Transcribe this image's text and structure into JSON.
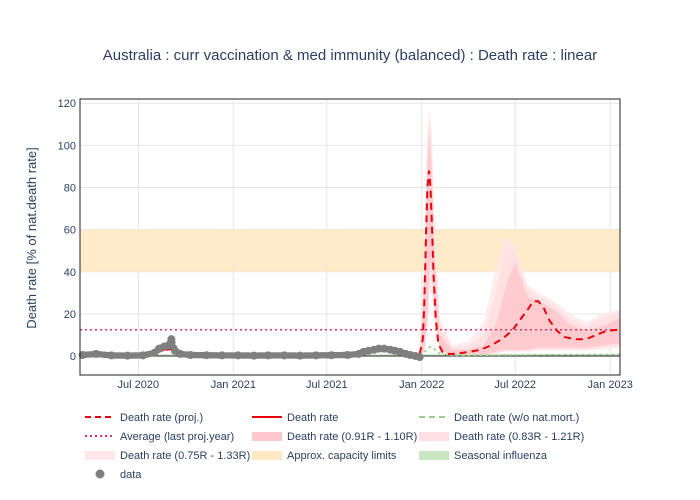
{
  "chart_data": {
    "type": "line",
    "title": "Australia : curr vaccination & med immunity (balanced) : Death rate : linear",
    "ylabel": "Death rate [% of nat.death rate]",
    "xlabel": "",
    "xlim": [
      "2020-03-10",
      "2023-01-20"
    ],
    "ylim": [
      -9,
      122
    ],
    "yticks": [
      0,
      20,
      40,
      60,
      80,
      100,
      120
    ],
    "xticks": [
      {
        "date": "2020-07-01",
        "label": "Jul 2020"
      },
      {
        "date": "2021-01-01",
        "label": "Jan 2021"
      },
      {
        "date": "2021-07-01",
        "label": "Jul 2021"
      },
      {
        "date": "2022-01-01",
        "label": "Jan 2022"
      },
      {
        "date": "2022-07-01",
        "label": "Jul 2022"
      },
      {
        "date": "2023-01-01",
        "label": "Jan 2023"
      }
    ],
    "grid": true,
    "legend_position": "bottom",
    "capacity_band": [
      40,
      60
    ],
    "average_last_proj_year": 12.5,
    "series": [
      {
        "name": "Death rate (proj.)",
        "style": "dashed",
        "color": "#e8000b",
        "x": [
          "2021-12-28",
          "2022-01-03",
          "2022-01-06",
          "2022-01-09",
          "2022-01-12",
          "2022-01-15",
          "2022-01-18",
          "2022-01-21",
          "2022-01-24",
          "2022-01-28",
          "2022-02-02",
          "2022-02-10",
          "2022-02-20",
          "2022-03-05",
          "2022-03-20",
          "2022-04-05",
          "2022-04-25",
          "2022-05-15",
          "2022-06-05",
          "2022-06-25",
          "2022-07-10",
          "2022-07-25",
          "2022-08-05",
          "2022-08-15",
          "2022-08-25",
          "2022-09-05",
          "2022-09-20",
          "2022-10-05",
          "2022-10-25",
          "2022-11-15",
          "2022-12-05",
          "2022-12-25",
          "2023-01-20"
        ],
        "y": [
          1,
          8,
          25,
          55,
          80,
          88,
          80,
          60,
          38,
          18,
          6,
          2,
          1,
          1,
          1.5,
          2,
          3,
          5,
          8,
          12,
          17,
          22,
          26,
          26,
          23,
          17,
          12,
          9,
          8,
          8,
          10,
          12,
          12.5
        ]
      },
      {
        "name": "Average (last proj.year)",
        "style": "dotted",
        "color": "#d6336c"
      },
      {
        "name": "Death rate (0.75R - 1.33R)",
        "style": "band",
        "color": "#ffe7ea"
      },
      {
        "name": "data",
        "style": "markers",
        "color": "#7f7f7f",
        "x": [
          "2020-03-15",
          "2020-04-10",
          "2020-05-10",
          "2020-06-10",
          "2020-07-10",
          "2020-08-01",
          "2020-08-10",
          "2020-08-20",
          "2020-08-28",
          "2020-09-03",
          "2020-09-10",
          "2020-09-20",
          "2020-10-10",
          "2020-11-10",
          "2020-12-10",
          "2021-01-10",
          "2021-02-10",
          "2021-03-10",
          "2021-04-10",
          "2021-05-10",
          "2021-06-10",
          "2021-07-10",
          "2021-08-10",
          "2021-09-01",
          "2021-09-10",
          "2021-09-20",
          "2021-10-01",
          "2021-10-10",
          "2021-10-20",
          "2021-11-01",
          "2021-11-10",
          "2021-11-20",
          "2021-12-01",
          "2021-12-10",
          "2021-12-20",
          "2021-12-28"
        ],
        "y": [
          0.5,
          1.0,
          0.3,
          0.2,
          0.3,
          1.5,
          3.5,
          4.5,
          5.0,
          8.0,
          2.5,
          1.0,
          0.5,
          0.4,
          0.3,
          0.3,
          0.2,
          0.3,
          0.3,
          0.2,
          0.3,
          0.4,
          0.5,
          1.0,
          2.0,
          2.5,
          3.0,
          3.5,
          3.5,
          3.0,
          2.5,
          2.0,
          1.0,
          0.5,
          0.0,
          -0.5
        ]
      },
      {
        "name": "Death rate",
        "style": "solid",
        "color": "#e8000b",
        "x": [
          "2020-03-10",
          "2020-07-01",
          "2020-08-01",
          "2020-08-20",
          "2020-09-05",
          "2020-09-20",
          "2020-10-10",
          "2021-01-01",
          "2021-04-01",
          "2021-07-01",
          "2021-08-20",
          "2021-09-10",
          "2021-10-01",
          "2021-10-25",
          "2021-11-15",
          "2021-12-05",
          "2021-12-28"
        ],
        "y": [
          0.3,
          0.3,
          1.0,
          3.0,
          3.2,
          1.0,
          0.4,
          0.3,
          0.3,
          0.4,
          0.6,
          1.5,
          2.8,
          3.2,
          2.5,
          1.5,
          0.6
        ]
      },
      {
        "name": "Death rate (0.91R - 1.10R)",
        "style": "band",
        "color": "#ffc9cc"
      },
      {
        "name": "Approx. capacity limits",
        "style": "band",
        "color": "#ffe8c4"
      },
      {
        "name": "Death rate (w/o nat.mort.)",
        "style": "dashed",
        "color": "#9ad08a",
        "x": [
          "2021-12-28",
          "2022-01-05",
          "2022-01-12",
          "2022-01-18",
          "2022-01-25",
          "2022-02-05",
          "2022-03-01",
          "2022-06-01",
          "2022-09-01",
          "2023-01-20"
        ],
        "y": [
          0,
          1.5,
          3.5,
          4.5,
          3.5,
          1.0,
          0.3,
          0.4,
          0.6,
          0.8
        ]
      },
      {
        "name": "Death rate (0.83R - 1.21R)",
        "style": "band",
        "color": "#ffdfe2"
      },
      {
        "name": "Seasonal influenza",
        "style": "band",
        "color": "#c9e6c2"
      }
    ],
    "bands": {
      "inner": {
        "x": [
          "2021-12-28",
          "2022-01-06",
          "2022-01-12",
          "2022-01-16",
          "2022-01-20",
          "2022-01-26",
          "2022-02-05",
          "2022-03-01",
          "2022-04-01",
          "2022-05-01",
          "2022-05-25",
          "2022-06-10",
          "2022-06-20",
          "2022-07-01",
          "2022-07-10",
          "2022-07-25",
          "2022-08-15",
          "2022-09-15",
          "2022-10-15",
          "2022-11-15",
          "2022-12-15",
          "2023-01-20"
        ],
        "upper": [
          1,
          35,
          92,
          105,
          90,
          45,
          10,
          3,
          3,
          5,
          15,
          30,
          38,
          45,
          38,
          28,
          26,
          22,
          15,
          12,
          14,
          18
        ],
        "lower": [
          0.5,
          3,
          20,
          45,
          42,
          22,
          3,
          0.5,
          0.5,
          1,
          2,
          3,
          3,
          3,
          3,
          3,
          4,
          4,
          4,
          4,
          5,
          6
        ]
      },
      "mid": {
        "x": [
          "2021-12-28",
          "2022-01-06",
          "2022-01-12",
          "2022-01-16",
          "2022-01-20",
          "2022-01-26",
          "2022-02-05",
          "2022-03-01",
          "2022-04-01",
          "2022-05-01",
          "2022-05-25",
          "2022-06-10",
          "2022-06-20",
          "2022-07-01",
          "2022-07-10",
          "2022-07-25",
          "2022-08-15",
          "2022-09-15",
          "2022-10-15",
          "2022-11-15",
          "2022-12-15",
          "2023-01-20"
        ],
        "upper": [
          1,
          42,
          102,
          112,
          100,
          55,
          14,
          4,
          5,
          10,
          30,
          50,
          52,
          50,
          42,
          32,
          28,
          24,
          18,
          14,
          18,
          21
        ],
        "lower": [
          0.4,
          2,
          14,
          36,
          35,
          18,
          2,
          0.4,
          0.4,
          0.8,
          1.5,
          2.5,
          2.5,
          2.5,
          2.5,
          2.5,
          3,
          3,
          3,
          3,
          4,
          5
        ]
      },
      "outer": {
        "x": [
          "2021-12-28",
          "2022-01-06",
          "2022-01-12",
          "2022-01-16",
          "2022-01-20",
          "2022-01-26",
          "2022-02-05",
          "2022-03-01",
          "2022-04-01",
          "2022-05-01",
          "2022-05-25",
          "2022-06-10",
          "2022-06-20",
          "2022-07-01",
          "2022-07-10",
          "2022-07-25",
          "2022-08-15",
          "2022-09-15",
          "2022-10-15",
          "2022-11-15",
          "2022-12-15",
          "2023-01-20"
        ],
        "upper": [
          1,
          48,
          108,
          117,
          108,
          62,
          18,
          5,
          7,
          16,
          42,
          56,
          55,
          52,
          45,
          34,
          30,
          26,
          20,
          16,
          20,
          22
        ],
        "lower": [
          0.3,
          1.5,
          10,
          30,
          30,
          15,
          1.5,
          0.3,
          0.3,
          0.6,
          1,
          2,
          2,
          2,
          2,
          2,
          2.5,
          2.5,
          2.5,
          2.5,
          3,
          4
        ]
      }
    }
  }
}
